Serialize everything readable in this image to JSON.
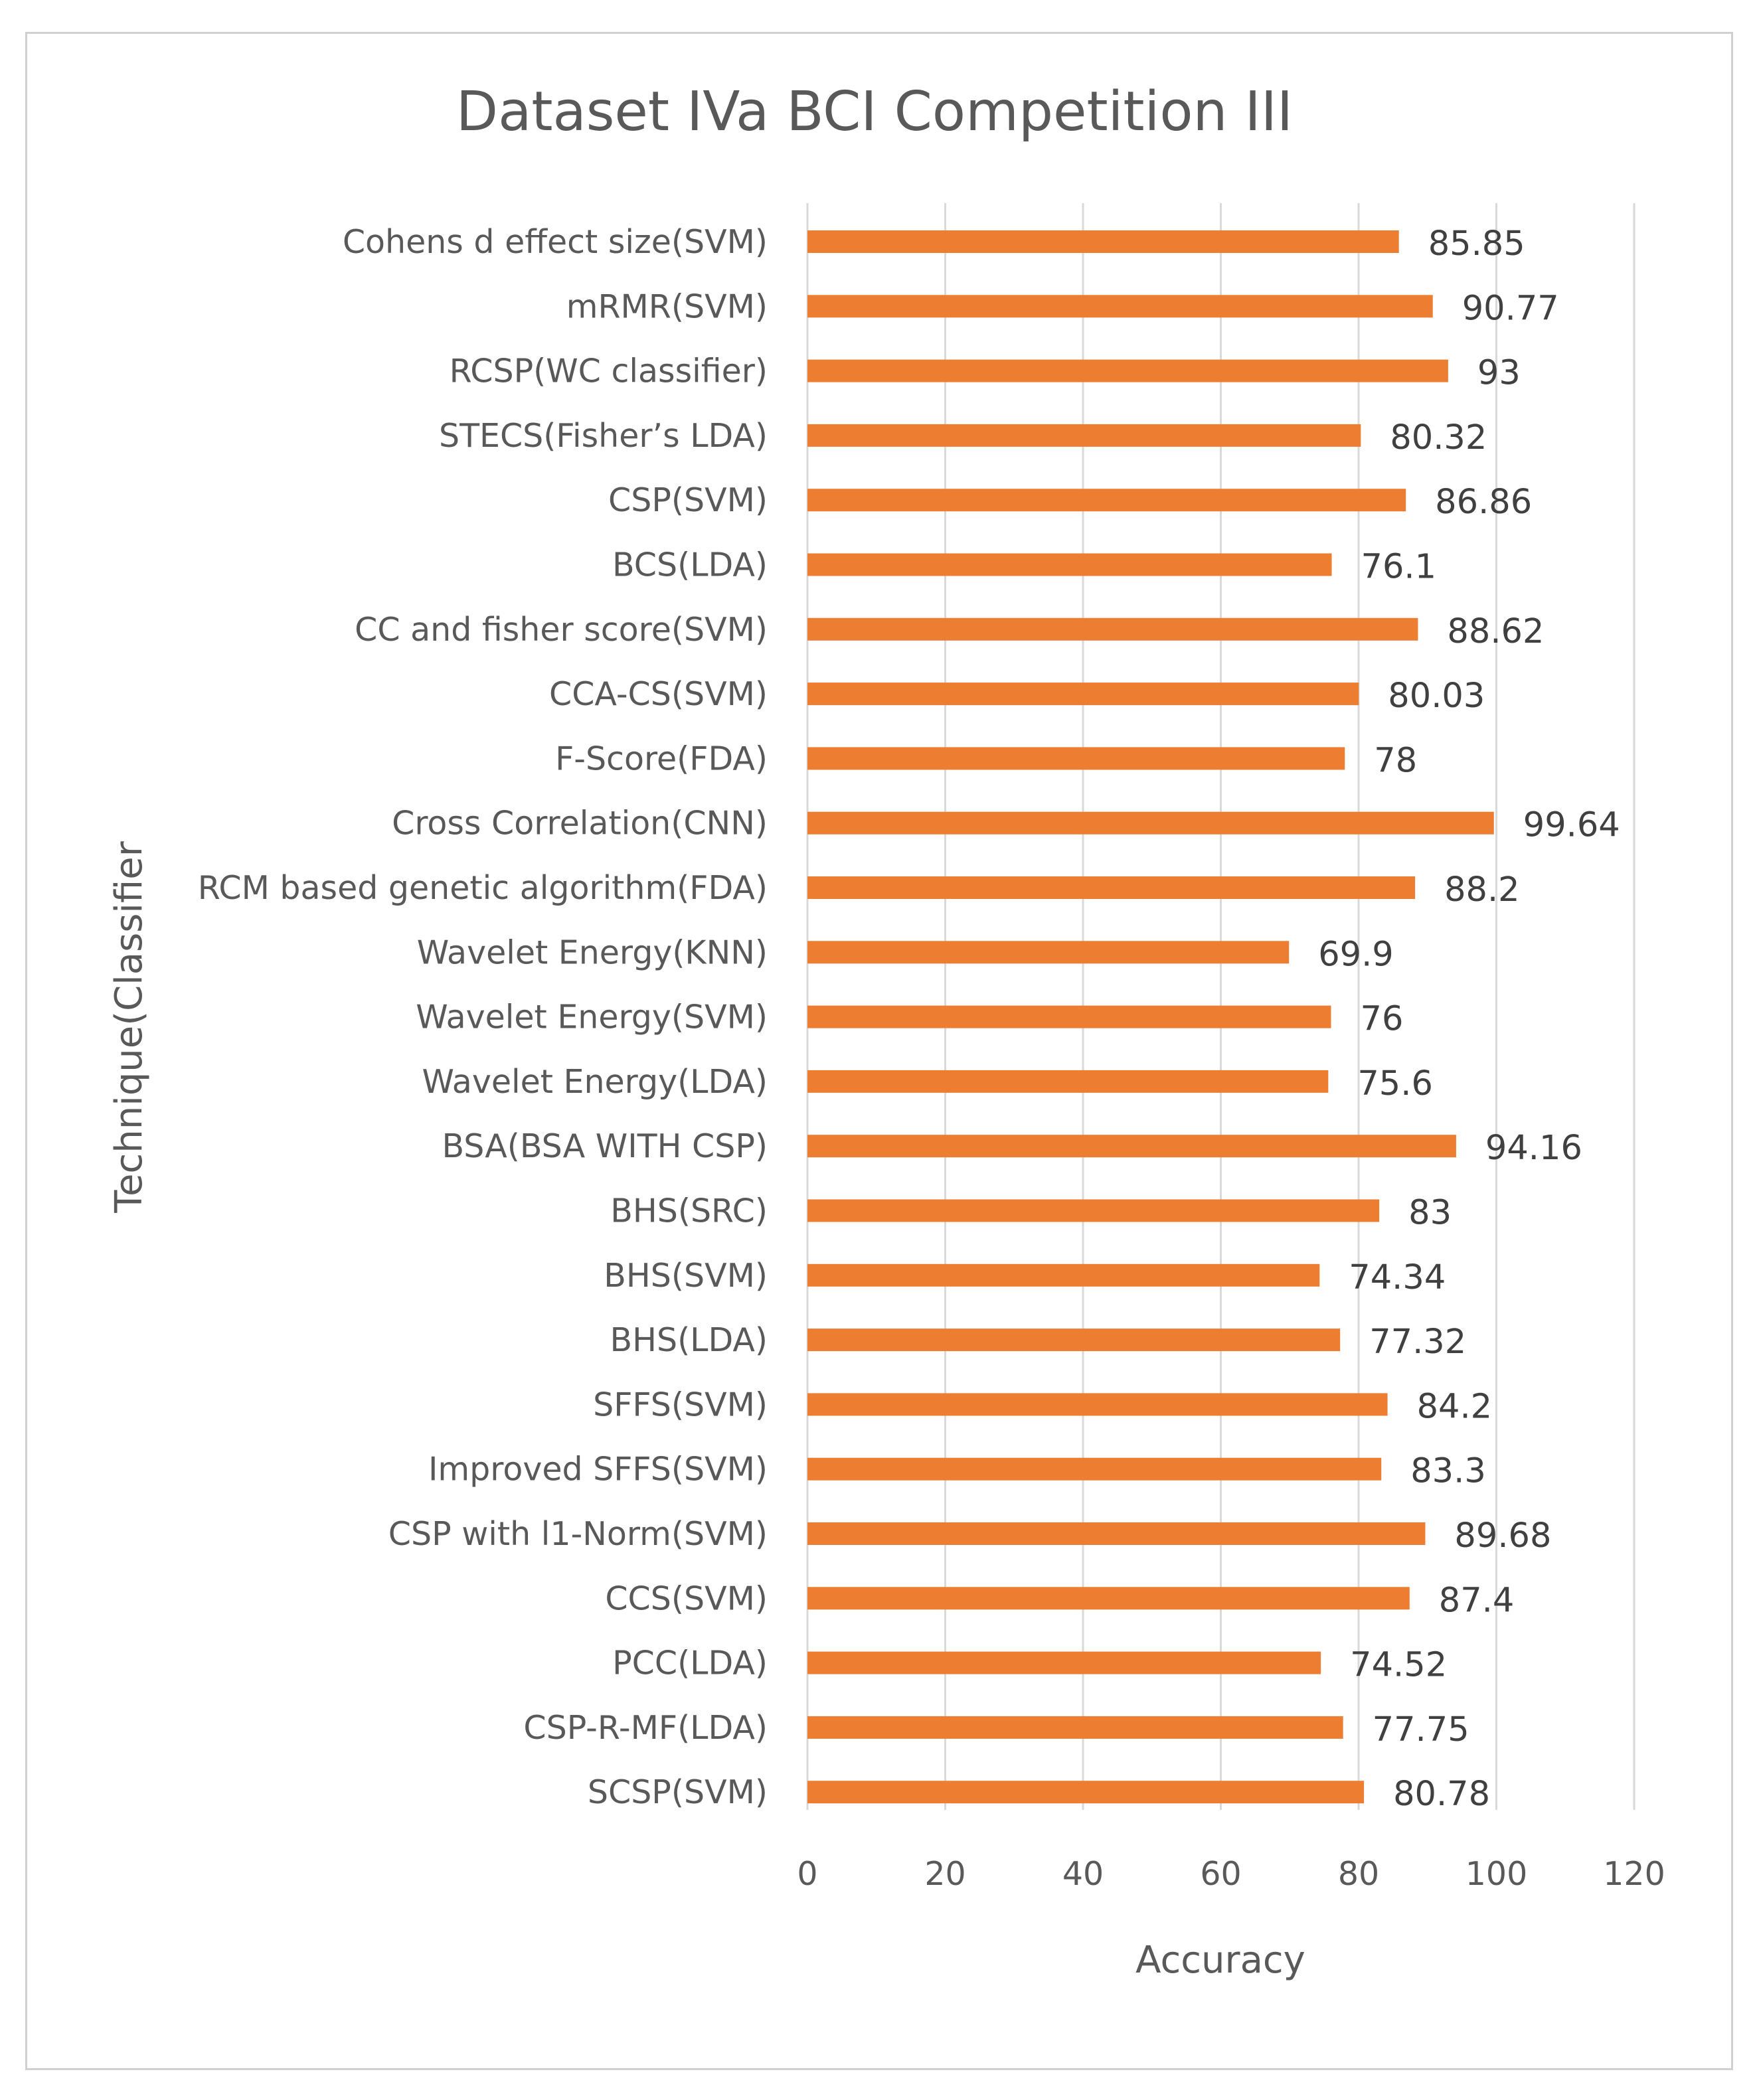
{
  "chart_data": {
    "type": "bar",
    "orientation": "horizontal",
    "title": "Dataset IVa BCI Competition III",
    "xlabel": "Accuracy",
    "ylabel": "Technique(Classifier",
    "xlim": [
      0,
      120
    ],
    "xticks": [
      0,
      20,
      40,
      60,
      80,
      100,
      120
    ],
    "grid": true,
    "legend": "none",
    "bar_color": "#ED7D31",
    "categories": [
      "Cohens d effect size(SVM)",
      "mRMR(SVM)",
      "RCSP(WC classifier)",
      "STECS(Fisher’s LDA)",
      "CSP(SVM)",
      "BCS(LDA)",
      "CC and fisher score(SVM)",
      "CCA-CS(SVM)",
      "F-Score(FDA)",
      "Cross Correlation(CNN)",
      "RCM based genetic algorithm(FDA)",
      "Wavelet Energy(KNN)",
      "Wavelet Energy(SVM)",
      "Wavelet Energy(LDA)",
      "BSA(BSA WITH CSP)",
      "BHS(SRC)",
      "BHS(SVM)",
      "BHS(LDA)",
      "SFFS(SVM)",
      "Improved SFFS(SVM)",
      "CSP with l1-Norm(SVM)",
      "CCS(SVM)",
      "PCC(LDA)",
      "CSP-R-MF(LDA)",
      "SCSP(SVM)"
    ],
    "values": [
      85.85,
      90.77,
      93,
      80.32,
      86.86,
      76.1,
      88.62,
      80.03,
      78,
      99.64,
      88.2,
      69.9,
      76,
      75.6,
      94.16,
      83,
      74.34,
      77.32,
      84.2,
      83.3,
      89.68,
      87.4,
      74.52,
      77.75,
      80.78
    ],
    "data_labels": [
      "85.85",
      "90.77",
      "93",
      "80.32",
      "86.86",
      "76.1",
      "88.62",
      "80.03",
      "78",
      "99.64",
      "88.2",
      "69.9",
      "76",
      "75.6",
      "94.16",
      "83",
      "74.34",
      "77.32",
      "84.2",
      "83.3",
      "89.68",
      "87.4",
      "74.52",
      "77.75",
      "80.78"
    ]
  }
}
